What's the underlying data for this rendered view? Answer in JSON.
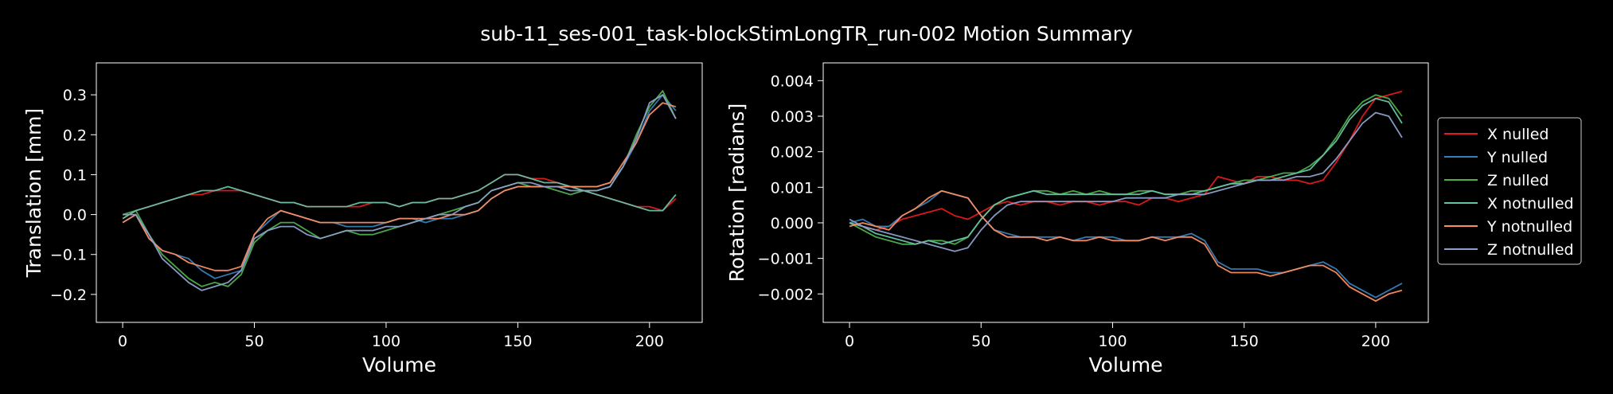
{
  "figure": {
    "title": "sub-11_ses-001_task-blockStimLongTR_run-002 Motion Summary"
  },
  "chart_data": [
    {
      "type": "line",
      "title": "",
      "xlabel": "Volume",
      "ylabel": "Translation [mm]",
      "xlim": [
        -10,
        220
      ],
      "ylim": [
        -0.27,
        0.38
      ],
      "xticks": [
        0,
        50,
        100,
        150,
        200
      ],
      "yticks": [
        -0.2,
        -0.1,
        0.0,
        0.1,
        0.2,
        0.3
      ],
      "ytick_labels": [
        "−0.2",
        "−0.1",
        "0.0",
        "0.1",
        "0.2",
        "0.3"
      ],
      "grid": false,
      "legend": false,
      "x": [
        0,
        5,
        10,
        15,
        20,
        25,
        30,
        35,
        40,
        45,
        50,
        55,
        60,
        65,
        70,
        75,
        80,
        85,
        90,
        95,
        100,
        105,
        110,
        115,
        120,
        125,
        130,
        135,
        140,
        145,
        150,
        155,
        160,
        165,
        170,
        175,
        180,
        185,
        190,
        195,
        200,
        205,
        210
      ],
      "series": [
        {
          "name": "X nulled",
          "color": "#e41a1c",
          "values": [
            -0.01,
            0.01,
            0.02,
            0.03,
            0.04,
            0.05,
            0.05,
            0.06,
            0.06,
            0.06,
            0.05,
            0.04,
            0.03,
            0.03,
            0.02,
            0.02,
            0.02,
            0.02,
            0.02,
            0.03,
            0.03,
            0.02,
            0.03,
            0.03,
            0.04,
            0.04,
            0.05,
            0.06,
            0.08,
            0.1,
            0.1,
            0.09,
            0.09,
            0.08,
            0.07,
            0.06,
            0.05,
            0.04,
            0.03,
            0.02,
            0.02,
            0.01,
            0.04
          ]
        },
        {
          "name": "Y nulled",
          "color": "#377eb8",
          "values": [
            -0.02,
            0.0,
            -0.06,
            -0.09,
            -0.1,
            -0.11,
            -0.14,
            -0.16,
            -0.15,
            -0.14,
            -0.05,
            -0.02,
            0.01,
            0.0,
            -0.01,
            -0.02,
            -0.02,
            -0.03,
            -0.03,
            -0.03,
            -0.02,
            -0.01,
            -0.01,
            -0.02,
            -0.01,
            -0.01,
            0.0,
            0.01,
            0.04,
            0.06,
            0.07,
            0.07,
            0.07,
            0.07,
            0.07,
            0.07,
            0.07,
            0.08,
            0.12,
            0.18,
            0.26,
            0.3,
            0.26
          ]
        },
        {
          "name": "Z nulled",
          "color": "#4daf4a",
          "values": [
            0.0,
            0.01,
            -0.05,
            -0.1,
            -0.13,
            -0.16,
            -0.18,
            -0.17,
            -0.18,
            -0.15,
            -0.07,
            -0.04,
            -0.02,
            -0.02,
            -0.04,
            -0.06,
            -0.05,
            -0.04,
            -0.05,
            -0.05,
            -0.04,
            -0.03,
            -0.02,
            -0.01,
            0.0,
            0.01,
            0.02,
            0.03,
            0.06,
            0.07,
            0.08,
            0.07,
            0.07,
            0.06,
            0.05,
            0.06,
            0.06,
            0.07,
            0.12,
            0.2,
            0.27,
            0.31,
            0.24
          ]
        },
        {
          "name": "X notnulled",
          "color": "#66c2a5",
          "values": [
            -0.01,
            0.01,
            0.02,
            0.03,
            0.04,
            0.05,
            0.06,
            0.06,
            0.07,
            0.06,
            0.05,
            0.04,
            0.03,
            0.03,
            0.02,
            0.02,
            0.02,
            0.02,
            0.03,
            0.03,
            0.03,
            0.02,
            0.03,
            0.03,
            0.04,
            0.04,
            0.05,
            0.06,
            0.08,
            0.1,
            0.1,
            0.09,
            0.08,
            0.08,
            0.07,
            0.06,
            0.05,
            0.04,
            0.03,
            0.02,
            0.01,
            0.01,
            0.05
          ]
        },
        {
          "name": "Y notnulled",
          "color": "#fc8d62",
          "values": [
            -0.02,
            0.0,
            -0.06,
            -0.09,
            -0.1,
            -0.12,
            -0.13,
            -0.14,
            -0.14,
            -0.13,
            -0.05,
            -0.01,
            0.01,
            0.0,
            -0.01,
            -0.02,
            -0.02,
            -0.02,
            -0.02,
            -0.02,
            -0.02,
            -0.01,
            -0.01,
            -0.01,
            -0.01,
            0.0,
            0.0,
            0.01,
            0.04,
            0.06,
            0.07,
            0.07,
            0.07,
            0.07,
            0.07,
            0.07,
            0.07,
            0.08,
            0.13,
            0.18,
            0.25,
            0.28,
            0.27
          ]
        },
        {
          "name": "Z notnulled",
          "color": "#8da0cb",
          "values": [
            0.0,
            0.0,
            -0.05,
            -0.11,
            -0.14,
            -0.17,
            -0.19,
            -0.18,
            -0.17,
            -0.14,
            -0.06,
            -0.04,
            -0.03,
            -0.03,
            -0.05,
            -0.06,
            -0.05,
            -0.04,
            -0.04,
            -0.04,
            -0.03,
            -0.03,
            -0.02,
            -0.01,
            0.0,
            0.0,
            0.02,
            0.03,
            0.06,
            0.07,
            0.08,
            0.08,
            0.07,
            0.07,
            0.06,
            0.06,
            0.06,
            0.07,
            0.12,
            0.19,
            0.28,
            0.3,
            0.24
          ]
        }
      ]
    },
    {
      "type": "line",
      "title": "",
      "xlabel": "Volume",
      "ylabel": "Rotation [radians]",
      "xlim": [
        -10,
        220
      ],
      "ylim": [
        -0.0028,
        0.0045
      ],
      "xticks": [
        0,
        50,
        100,
        150,
        200
      ],
      "yticks": [
        -0.002,
        -0.001,
        0.0,
        0.001,
        0.002,
        0.003,
        0.004
      ],
      "ytick_labels": [
        "−0.002",
        "−0.001",
        "0.000",
        "0.001",
        "0.002",
        "0.003",
        "0.004"
      ],
      "grid": false,
      "legend": "outside-right",
      "x": [
        0,
        5,
        10,
        15,
        20,
        25,
        30,
        35,
        40,
        45,
        50,
        55,
        60,
        65,
        70,
        75,
        80,
        85,
        90,
        95,
        100,
        105,
        110,
        115,
        120,
        125,
        130,
        135,
        140,
        145,
        150,
        155,
        160,
        165,
        170,
        175,
        180,
        185,
        190,
        195,
        200,
        205,
        210
      ],
      "series": [
        {
          "name": "X nulled",
          "color": "#e41a1c",
          "values": [
            0.0,
            -0.0001,
            -0.0002,
            -0.0001,
            0.0001,
            0.0002,
            0.0003,
            0.0004,
            0.0002,
            0.0001,
            0.0003,
            0.0005,
            0.0006,
            0.0005,
            0.0006,
            0.0006,
            0.0005,
            0.0006,
            0.0006,
            0.0005,
            0.0006,
            0.0006,
            0.0005,
            0.0007,
            0.0007,
            0.0006,
            0.0007,
            0.0008,
            0.0013,
            0.0012,
            0.0011,
            0.0013,
            0.0013,
            0.0012,
            0.0012,
            0.0011,
            0.0012,
            0.0017,
            0.0023,
            0.003,
            0.0035,
            0.0036,
            0.0037
          ]
        },
        {
          "name": "Y nulled",
          "color": "#377eb8",
          "values": [
            0.0,
            0.0001,
            -0.0001,
            -0.0001,
            0.0002,
            0.0004,
            0.0006,
            0.0009,
            0.0008,
            0.0007,
            0.0002,
            -0.0002,
            -0.0003,
            -0.0004,
            -0.0004,
            -0.0004,
            -0.0004,
            -0.0005,
            -0.0004,
            -0.0004,
            -0.0004,
            -0.0005,
            -0.0005,
            -0.0004,
            -0.0004,
            -0.0004,
            -0.0003,
            -0.0005,
            -0.0011,
            -0.0013,
            -0.0013,
            -0.0013,
            -0.0014,
            -0.0014,
            -0.0013,
            -0.0012,
            -0.0011,
            -0.0013,
            -0.0017,
            -0.0019,
            -0.0021,
            -0.0019,
            -0.0017
          ]
        },
        {
          "name": "Z nulled",
          "color": "#4daf4a",
          "values": [
            0.0,
            -0.0002,
            -0.0004,
            -0.0005,
            -0.0006,
            -0.0006,
            -0.0005,
            -0.0005,
            -0.0006,
            -0.0004,
            0.0001,
            0.0005,
            0.0007,
            0.0008,
            0.0009,
            0.0009,
            0.0008,
            0.0009,
            0.0008,
            0.0009,
            0.0008,
            0.0008,
            0.0009,
            0.0009,
            0.0008,
            0.0008,
            0.0009,
            0.0009,
            0.001,
            0.0011,
            0.0012,
            0.0012,
            0.0013,
            0.0014,
            0.0014,
            0.0016,
            0.0019,
            0.0024,
            0.003,
            0.0034,
            0.0036,
            0.0035,
            0.003
          ]
        },
        {
          "name": "X notnulled",
          "color": "#66c2a5",
          "values": [
            0.0,
            -0.0001,
            -0.0003,
            -0.0004,
            -0.0005,
            -0.0006,
            -0.0005,
            -0.0006,
            -0.0005,
            -0.0004,
            0.0001,
            0.0005,
            0.0007,
            0.0008,
            0.0009,
            0.0008,
            0.0008,
            0.0008,
            0.0008,
            0.0008,
            0.0008,
            0.0008,
            0.0008,
            0.0009,
            0.0008,
            0.0008,
            0.0008,
            0.0009,
            0.001,
            0.0011,
            0.0011,
            0.0012,
            0.0012,
            0.0013,
            0.0014,
            0.0015,
            0.0019,
            0.0023,
            0.0029,
            0.0033,
            0.0035,
            0.0034,
            0.0028
          ]
        },
        {
          "name": "Y notnulled",
          "color": "#fc8d62",
          "values": [
            -0.0001,
            0.0,
            -0.0001,
            -0.0002,
            0.0002,
            0.0004,
            0.0007,
            0.0009,
            0.0008,
            0.0007,
            0.0002,
            -0.0002,
            -0.0004,
            -0.0004,
            -0.0004,
            -0.0005,
            -0.0004,
            -0.0005,
            -0.0005,
            -0.0004,
            -0.0005,
            -0.0005,
            -0.0005,
            -0.0004,
            -0.0005,
            -0.0004,
            -0.0004,
            -0.0006,
            -0.0012,
            -0.0014,
            -0.0014,
            -0.0014,
            -0.0015,
            -0.0014,
            -0.0013,
            -0.0012,
            -0.0012,
            -0.0014,
            -0.0018,
            -0.002,
            -0.0022,
            -0.002,
            -0.0019
          ]
        },
        {
          "name": "Z notnulled",
          "color": "#8da0cb",
          "values": [
            0.0001,
            -0.0001,
            -0.0002,
            -0.0003,
            -0.0004,
            -0.0005,
            -0.0006,
            -0.0007,
            -0.0008,
            -0.0007,
            -0.0002,
            0.0002,
            0.0005,
            0.0006,
            0.0006,
            0.0006,
            0.0006,
            0.0006,
            0.0006,
            0.0006,
            0.0006,
            0.0007,
            0.0007,
            0.0007,
            0.0007,
            0.0008,
            0.0008,
            0.0008,
            0.0009,
            0.001,
            0.0011,
            0.0012,
            0.0012,
            0.0012,
            0.0013,
            0.0013,
            0.0014,
            0.0018,
            0.0023,
            0.0028,
            0.0031,
            0.003,
            0.0024
          ]
        }
      ]
    }
  ]
}
